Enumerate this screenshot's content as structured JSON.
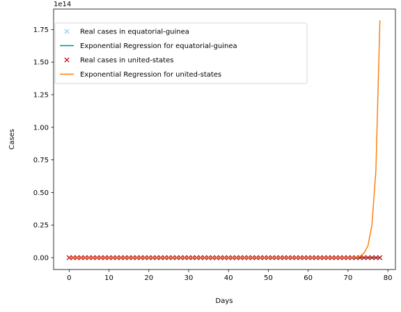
{
  "chart_data": {
    "type": "line",
    "xlabel": "Days",
    "ylabel": "Cases",
    "y_offset_text": "1e14",
    "xlim": [
      -3.9,
      81.9
    ],
    "ylim": [
      -0.0908,
      1.907
    ],
    "x_ticks": [
      0,
      10,
      20,
      30,
      40,
      50,
      60,
      70,
      80
    ],
    "x_tick_labels": [
      "0",
      "10",
      "20",
      "30",
      "40",
      "50",
      "60",
      "70",
      "80"
    ],
    "y_ticks": [
      0,
      0.25,
      0.5,
      0.75,
      1.0,
      1.25,
      1.5,
      1.75
    ],
    "y_tick_labels": [
      "0.00",
      "0.25",
      "0.50",
      "0.75",
      "1.00",
      "1.25",
      "1.50",
      "1.75"
    ],
    "y_unit_multiplier": "1e14",
    "grid": false,
    "legend_position": "top-left",
    "series": [
      {
        "name": "Real cases in equatorial-guinea",
        "kind": "marker",
        "marker": "x",
        "color": "#87ceeb",
        "x_range": [
          0,
          78
        ],
        "y_constant": 0
      },
      {
        "name": "Exponential Regression for equatorial-guinea",
        "kind": "line",
        "color": "#008b8b",
        "x_range": [
          0,
          78
        ],
        "y_constant": 0
      },
      {
        "name": "Real cases in united-states",
        "kind": "marker",
        "marker": "x",
        "color": "#cc0000",
        "x_range": [
          0,
          78
        ],
        "y_constant": 0
      },
      {
        "name": "Exponential Regression for united-states",
        "kind": "line",
        "color": "#ff7f0e",
        "points": [
          [
            0,
            0
          ],
          [
            70,
            0.001
          ],
          [
            71,
            0.002
          ],
          [
            72,
            0.004
          ],
          [
            73,
            0.01
          ],
          [
            74,
            0.035
          ],
          [
            75,
            0.09
          ],
          [
            76,
            0.25
          ],
          [
            77,
            0.67
          ],
          [
            78,
            1.82
          ]
        ]
      }
    ]
  }
}
